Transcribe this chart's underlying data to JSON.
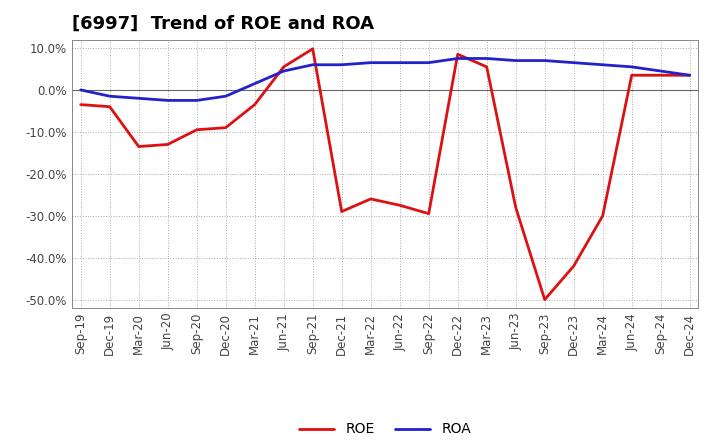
{
  "title": "[6997]  Trend of ROE and ROA",
  "x_labels": [
    "Sep-19",
    "Dec-19",
    "Mar-20",
    "Jun-20",
    "Sep-20",
    "Dec-20",
    "Mar-21",
    "Jun-21",
    "Sep-21",
    "Dec-21",
    "Mar-22",
    "Jun-22",
    "Sep-22",
    "Dec-22",
    "Mar-23",
    "Jun-23",
    "Sep-23",
    "Dec-23",
    "Mar-24",
    "Jun-24",
    "Sep-24",
    "Dec-24"
  ],
  "roe": [
    -3.5,
    -4.0,
    -13.5,
    -13.0,
    -9.5,
    -9.0,
    -3.5,
    5.5,
    9.8,
    -29.0,
    -26.0,
    -27.5,
    -29.5,
    8.5,
    5.5,
    -28.0,
    -50.0,
    -42.0,
    -30.0,
    3.5,
    3.5,
    3.5
  ],
  "roa": [
    0.0,
    -1.5,
    -2.0,
    -2.5,
    -2.5,
    -1.5,
    1.5,
    4.5,
    6.0,
    6.0,
    6.5,
    6.5,
    6.5,
    7.5,
    7.5,
    7.0,
    7.0,
    6.5,
    6.0,
    5.5,
    4.5,
    3.5
  ],
  "ylim": [
    -52,
    12
  ],
  "yticks": [
    -50.0,
    -40.0,
    -30.0,
    -20.0,
    -10.0,
    0.0,
    10.0
  ],
  "roe_color": "#dd1111",
  "roa_color": "#2222cc",
  "background_color": "#ffffff",
  "plot_bg_color": "#ffffff",
  "grid_color": "#aaaaaa",
  "zero_line_color": "#666666",
  "title_fontsize": 13,
  "axis_fontsize": 8.5,
  "legend_fontsize": 10,
  "line_width": 2.0
}
